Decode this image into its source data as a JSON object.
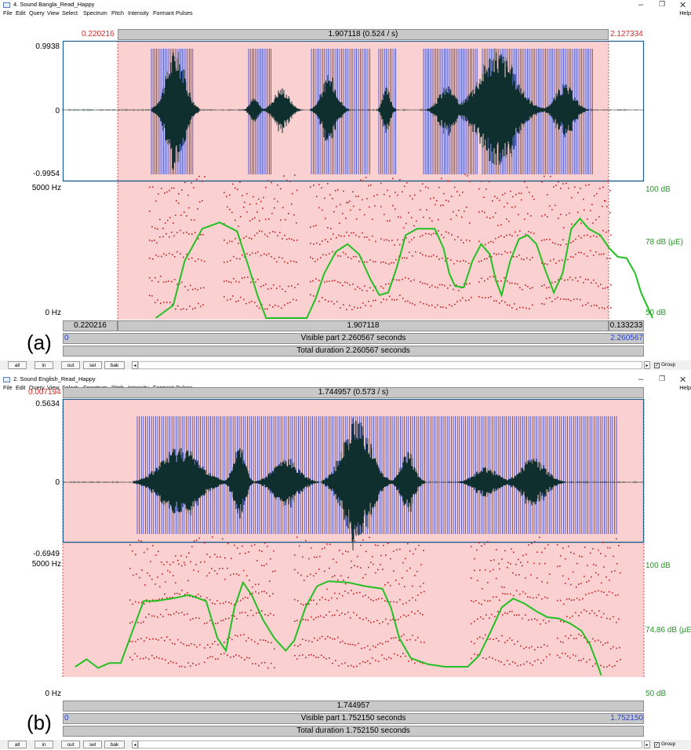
{
  "windows": [
    {
      "title": "4. Sound Bangla_Read_Happy",
      "panel_label": "(a)",
      "menu": [
        "File",
        "Edit",
        "Query",
        "View",
        "Select",
        "Spectrum",
        "Pitch",
        "Intensity",
        "Formant",
        "Pulses"
      ],
      "help": "Help",
      "sel_start": "0.220216",
      "sel_duration": "1.907118 (0.524 / s)",
      "sel_end": "2.127334",
      "amp_max": "0.9938",
      "amp_zero": "0",
      "amp_min": "-0.9954",
      "freq_top": "5000 Hz",
      "freq_bottom": "0 Hz",
      "db_top": "100 dB",
      "db_mid": "78 dB (µE)",
      "db_bottom": "50 dB",
      "row1_left": "0.220216",
      "row1_mid": "1.907118",
      "row1_right": "0.133233",
      "visible_start": "0",
      "visible_text": "Visible part 2.260567 seconds",
      "visible_end": "2.260567",
      "total_text": "Total duration 2.260567 seconds",
      "buttons": [
        "all",
        "in",
        "out",
        "sel",
        "bak"
      ],
      "group_label": "Group",
      "pitch_curve": [
        [
          0.16,
          0.0
        ],
        [
          0.19,
          0.1
        ],
        [
          0.21,
          0.45
        ],
        [
          0.24,
          0.7
        ],
        [
          0.27,
          0.75
        ],
        [
          0.3,
          0.68
        ],
        [
          0.32,
          0.4
        ],
        [
          0.335,
          0.18
        ],
        [
          0.35,
          0.0
        ],
        [
          0.38,
          0.0
        ],
        [
          0.4,
          0.0
        ],
        [
          0.42,
          0.0
        ],
        [
          0.435,
          0.15
        ],
        [
          0.45,
          0.35
        ],
        [
          0.47,
          0.52
        ],
        [
          0.49,
          0.58
        ],
        [
          0.51,
          0.5
        ],
        [
          0.53,
          0.3
        ],
        [
          0.545,
          0.18
        ],
        [
          0.56,
          0.2
        ],
        [
          0.575,
          0.4
        ],
        [
          0.59,
          0.65
        ],
        [
          0.61,
          0.7
        ],
        [
          0.64,
          0.7
        ],
        [
          0.655,
          0.55
        ],
        [
          0.665,
          0.35
        ],
        [
          0.675,
          0.25
        ],
        [
          0.69,
          0.24
        ],
        [
          0.705,
          0.45
        ],
        [
          0.72,
          0.58
        ],
        [
          0.735,
          0.5
        ],
        [
          0.745,
          0.3
        ],
        [
          0.755,
          0.18
        ],
        [
          0.77,
          0.45
        ],
        [
          0.785,
          0.62
        ],
        [
          0.8,
          0.65
        ],
        [
          0.815,
          0.58
        ],
        [
          0.83,
          0.38
        ],
        [
          0.845,
          0.2
        ],
        [
          0.86,
          0.35
        ],
        [
          0.875,
          0.7
        ],
        [
          0.89,
          0.78
        ],
        [
          0.905,
          0.7
        ],
        [
          0.925,
          0.65
        ],
        [
          0.94,
          0.55
        ],
        [
          0.955,
          0.48
        ],
        [
          0.97,
          0.47
        ],
        [
          0.985,
          0.35
        ],
        [
          0.995,
          0.2
        ],
        [
          1.005,
          0.1
        ],
        [
          1.015,
          0.0
        ]
      ]
    },
    {
      "title": "2. Sound English_Read_Happy",
      "panel_label": "(b)",
      "menu": [
        "File",
        "Edit",
        "Query",
        "View",
        "Select",
        "Spectrum",
        "Pitch",
        "Intensity",
        "Formant",
        "Pulses"
      ],
      "help": "Help",
      "sel_start": "0.007194",
      "sel_duration": "1.744957 (0.573 / s)",
      "sel_end": "",
      "amp_max": "0.5634",
      "amp_zero": "0",
      "amp_min": "-0.6949",
      "freq_top": "5000 Hz",
      "freq_bottom": "0 Hz",
      "db_top": "100 dB",
      "db_mid": "74.86 dB (µE)",
      "db_bottom": "50 dB",
      "row1_left": "",
      "row1_mid": "1.744957",
      "row1_right": "",
      "visible_start": "0",
      "visible_text": "Visible part 1.752150 seconds",
      "visible_end": "1.752150",
      "total_text": "Total duration 1.752150 seconds",
      "buttons": [
        "all",
        "in",
        "out",
        "sel",
        "bak"
      ],
      "group_label": "Group",
      "pitch_curve": [
        [
          0.0,
          0.07
        ],
        [
          0.02,
          0.13
        ],
        [
          0.04,
          0.06
        ],
        [
          0.06,
          0.1
        ],
        [
          0.08,
          0.1
        ],
        [
          0.1,
          0.35
        ],
        [
          0.12,
          0.6
        ],
        [
          0.14,
          0.6
        ],
        [
          0.17,
          0.62
        ],
        [
          0.2,
          0.65
        ],
        [
          0.23,
          0.6
        ],
        [
          0.25,
          0.3
        ],
        [
          0.265,
          0.2
        ],
        [
          0.28,
          0.55
        ],
        [
          0.295,
          0.75
        ],
        [
          0.31,
          0.65
        ],
        [
          0.33,
          0.45
        ],
        [
          0.35,
          0.3
        ],
        [
          0.37,
          0.2
        ],
        [
          0.385,
          0.28
        ],
        [
          0.405,
          0.55
        ],
        [
          0.425,
          0.72
        ],
        [
          0.445,
          0.76
        ],
        [
          0.48,
          0.75
        ],
        [
          0.51,
          0.72
        ],
        [
          0.54,
          0.7
        ],
        [
          0.555,
          0.55
        ],
        [
          0.57,
          0.3
        ],
        [
          0.59,
          0.14
        ],
        [
          0.62,
          0.09
        ],
        [
          0.65,
          0.07
        ],
        [
          0.69,
          0.07
        ],
        [
          0.71,
          0.16
        ],
        [
          0.73,
          0.35
        ],
        [
          0.75,
          0.55
        ],
        [
          0.77,
          0.62
        ],
        [
          0.79,
          0.58
        ],
        [
          0.81,
          0.52
        ],
        [
          0.83,
          0.47
        ],
        [
          0.85,
          0.46
        ],
        [
          0.87,
          0.42
        ],
        [
          0.89,
          0.36
        ],
        [
          0.905,
          0.25
        ],
        [
          0.915,
          0.13
        ],
        [
          0.925,
          0.0
        ]
      ]
    }
  ]
}
